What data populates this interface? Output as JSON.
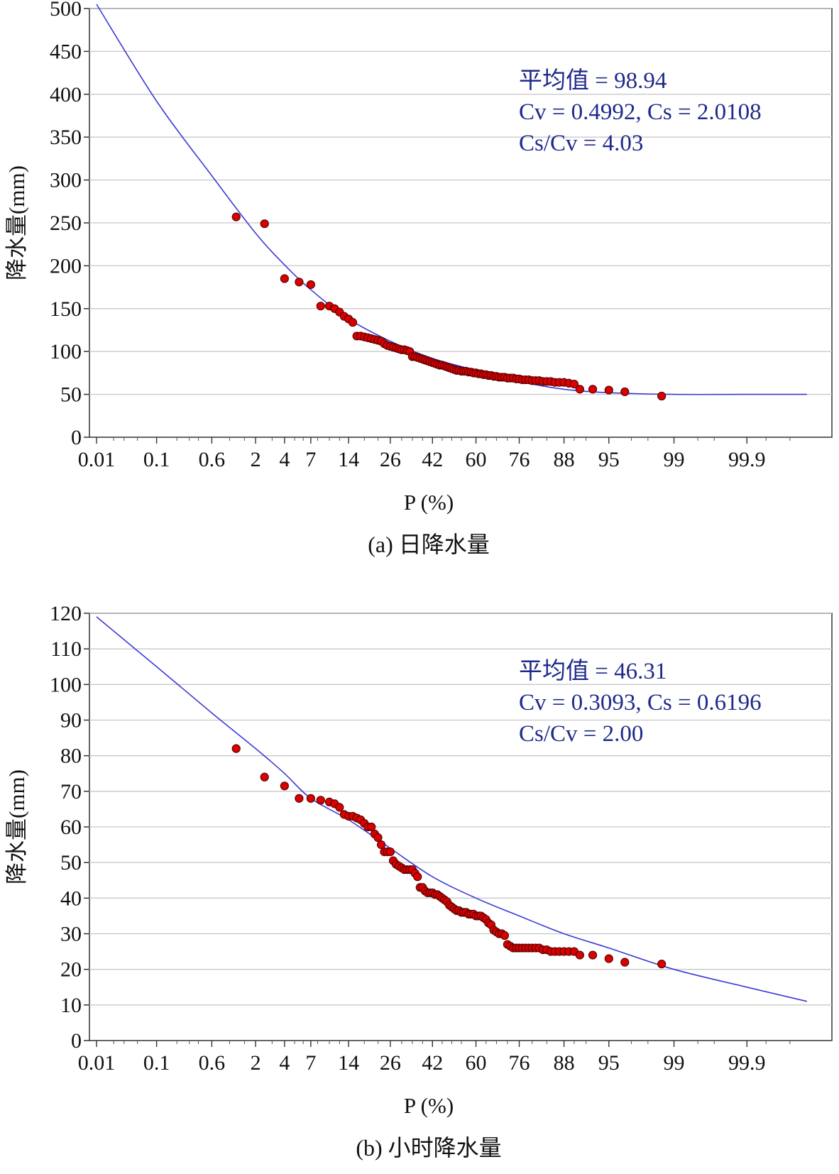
{
  "chart_data": [
    {
      "type": "scatter",
      "caption": "(a) 日降水量",
      "xlabel": "P (%)",
      "ylabel": "降水量(mm)",
      "x_scale": "probability",
      "xticks": [
        "0.01",
        "0.1",
        "0.6",
        "2",
        "4",
        "7",
        "14",
        "26",
        "42",
        "60",
        "76",
        "88",
        "95",
        "99",
        "99.9"
      ],
      "ylim": [
        0,
        500
      ],
      "yticks": [
        0,
        50,
        100,
        150,
        200,
        250,
        300,
        350,
        400,
        450,
        500
      ],
      "grid": true,
      "stats": {
        "mean_label": "平均值 = 98.94",
        "cv_cs_label": "Cv = 0.4992,   Cs = 2.0108",
        "ratio_label": "Cs/Cv = 4.03"
      },
      "curve_color": "#3b3bd6",
      "point_color": "#d80000",
      "series": [
        {
          "name": "theoretical-curve",
          "kind": "line",
          "x": [
            0.01,
            0.1,
            0.6,
            2,
            4,
            7,
            14,
            26,
            42,
            60,
            76,
            88,
            95,
            99,
            99.9,
            99.99
          ],
          "y": [
            505,
            392,
            305,
            238,
            201,
            172,
            138,
            112,
            92,
            78,
            65,
            56,
            52,
            50,
            50,
            50
          ]
        },
        {
          "name": "observed",
          "kind": "scatter",
          "x": [
            1.2,
            2.5,
            4,
            5.5,
            7,
            8.5,
            10,
            11,
            12,
            13,
            14,
            15,
            16,
            17,
            18,
            19,
            20,
            21,
            22,
            23,
            24,
            25,
            26,
            27,
            28,
            29,
            30,
            31,
            32,
            33,
            34,
            35,
            36,
            37,
            38,
            39,
            40,
            41,
            42,
            43,
            44,
            45,
            46,
            47,
            48,
            49,
            50,
            51,
            52,
            53,
            54,
            55,
            56,
            57,
            58,
            59,
            60,
            61,
            62,
            63,
            64,
            65,
            66,
            67,
            68,
            69,
            70,
            71,
            72,
            73,
            74,
            75,
            76,
            77,
            78,
            79,
            80,
            81,
            82,
            83,
            84,
            85,
            86,
            87,
            88,
            89,
            90,
            91,
            93,
            95,
            96.5,
            98.6
          ],
          "y": [
            257,
            249,
            185,
            181,
            178,
            153,
            153,
            150,
            146,
            141,
            138,
            134,
            118,
            118,
            117,
            116,
            115,
            114,
            113,
            112,
            109,
            107,
            106,
            105,
            104,
            103,
            102,
            102,
            101,
            100,
            94,
            94,
            93,
            92,
            91,
            90,
            89,
            88,
            87,
            86,
            85,
            84,
            84,
            83,
            82,
            81,
            80,
            79,
            78,
            78,
            77,
            77,
            77,
            76,
            76,
            75,
            75,
            74,
            74,
            73,
            73,
            72,
            72,
            71,
            71,
            70,
            70,
            70,
            69,
            69,
            69,
            68,
            68,
            67,
            67,
            67,
            66,
            66,
            66,
            65,
            65,
            65,
            64,
            64,
            64,
            63,
            62,
            56,
            56,
            55,
            53,
            48
          ]
        }
      ]
    },
    {
      "type": "scatter",
      "caption": "(b) 小时降水量",
      "xlabel": "P (%)",
      "ylabel": "降水量(mm)",
      "x_scale": "probability",
      "xticks": [
        "0.01",
        "0.1",
        "0.6",
        "2",
        "4",
        "7",
        "14",
        "26",
        "42",
        "60",
        "76",
        "88",
        "95",
        "99",
        "99.9"
      ],
      "ylim": [
        0,
        120
      ],
      "yticks": [
        0,
        10,
        20,
        30,
        40,
        50,
        60,
        70,
        80,
        90,
        100,
        110,
        120
      ],
      "grid": true,
      "stats": {
        "mean_label": "平均值 = 46.31",
        "cv_cs_label": "Cv = 0.3093,   Cs = 0.6196",
        "ratio_label": "Cs/Cv = 2.00"
      },
      "curve_color": "#3b3bd6",
      "point_color": "#d80000",
      "series": [
        {
          "name": "theoretical-curve",
          "kind": "line",
          "x": [
            0.01,
            0.1,
            0.6,
            2,
            4,
            7,
            14,
            26,
            42,
            60,
            76,
            88,
            95,
            99,
            99.9,
            99.99
          ],
          "y": [
            119,
            105,
            92,
            82,
            75,
            68,
            62,
            54,
            46,
            40,
            35,
            30,
            26,
            20,
            15,
            11
          ]
        },
        {
          "name": "observed",
          "kind": "scatter",
          "x": [
            1.2,
            2.5,
            4,
            5.5,
            7,
            8.5,
            10,
            11,
            12,
            13,
            14,
            15,
            16,
            17,
            18,
            19,
            20,
            21,
            22,
            23,
            24,
            25,
            26,
            27,
            28,
            29,
            30,
            31,
            32,
            33,
            34,
            35,
            36,
            37,
            38,
            39,
            40,
            41,
            42,
            43,
            44,
            45,
            46,
            47,
            48,
            49,
            50,
            51,
            52,
            53,
            54,
            55,
            56,
            57,
            58,
            59,
            60,
            61,
            62,
            63,
            64,
            65,
            66,
            67,
            68,
            69,
            70,
            71,
            72,
            73,
            74,
            75,
            76,
            77,
            78,
            79,
            80,
            81,
            82,
            83,
            84,
            85,
            86,
            87,
            88,
            89,
            90,
            91,
            93,
            95,
            96.5,
            98.6
          ],
          "y": [
            82,
            74,
            71.5,
            68,
            68,
            67.5,
            67,
            66.5,
            65.5,
            63.5,
            63,
            63,
            62.5,
            62,
            61,
            60,
            60,
            58,
            57,
            55,
            53,
            53,
            53,
            50.5,
            49.5,
            49,
            48.5,
            48,
            48,
            48,
            48,
            47,
            46,
            43,
            43,
            42,
            41.5,
            41.5,
            41.5,
            41,
            41,
            40.5,
            40,
            39.5,
            39,
            38,
            37.5,
            37,
            36.5,
            36.5,
            36,
            36,
            36,
            35.5,
            35.5,
            35.5,
            35,
            35,
            35,
            34.5,
            34,
            33,
            32.5,
            31,
            30.5,
            30,
            30,
            29.5,
            27,
            26.5,
            26,
            26,
            26,
            26,
            26,
            26,
            26,
            26,
            26,
            25.5,
            25.5,
            25,
            25,
            25,
            25,
            25,
            25,
            24,
            24,
            23,
            22,
            21.5
          ]
        }
      ]
    }
  ]
}
